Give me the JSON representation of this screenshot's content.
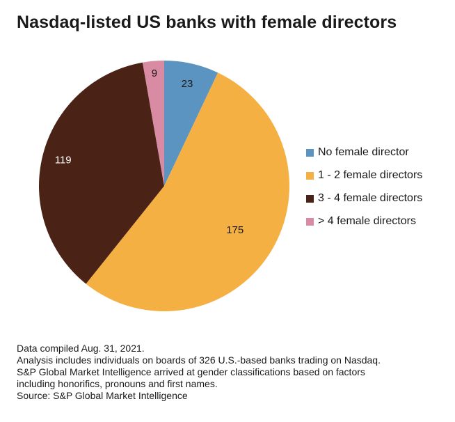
{
  "chart_data": {
    "type": "pie",
    "title": "Nasdaq-listed US banks with female directors",
    "categories": [
      "No female director",
      "1 - 2 female directors",
      "3 - 4 female directors",
      "> 4 female directors"
    ],
    "values": [
      23,
      175,
      119,
      9
    ],
    "colors": [
      "#5b94c0",
      "#f4b042",
      "#4a2316",
      "#d98ba3"
    ],
    "label_colors": [
      "#1a1a1a",
      "#1a1a1a",
      "#ffffff",
      "#1a1a1a"
    ],
    "start_angle_deg": 0,
    "direction": "clockwise",
    "legend_position": "right"
  },
  "footnotes": [
    "Data compiled Aug. 31, 2021.",
    "Analysis includes individuals on boards of 326 U.S.-based banks trading on Nasdaq.",
    "S&P Global Market Intelligence arrived at gender classifications based on factors",
    "including honorifics, pronouns and first names.",
    "Source: S&P Global Market Intelligence"
  ]
}
